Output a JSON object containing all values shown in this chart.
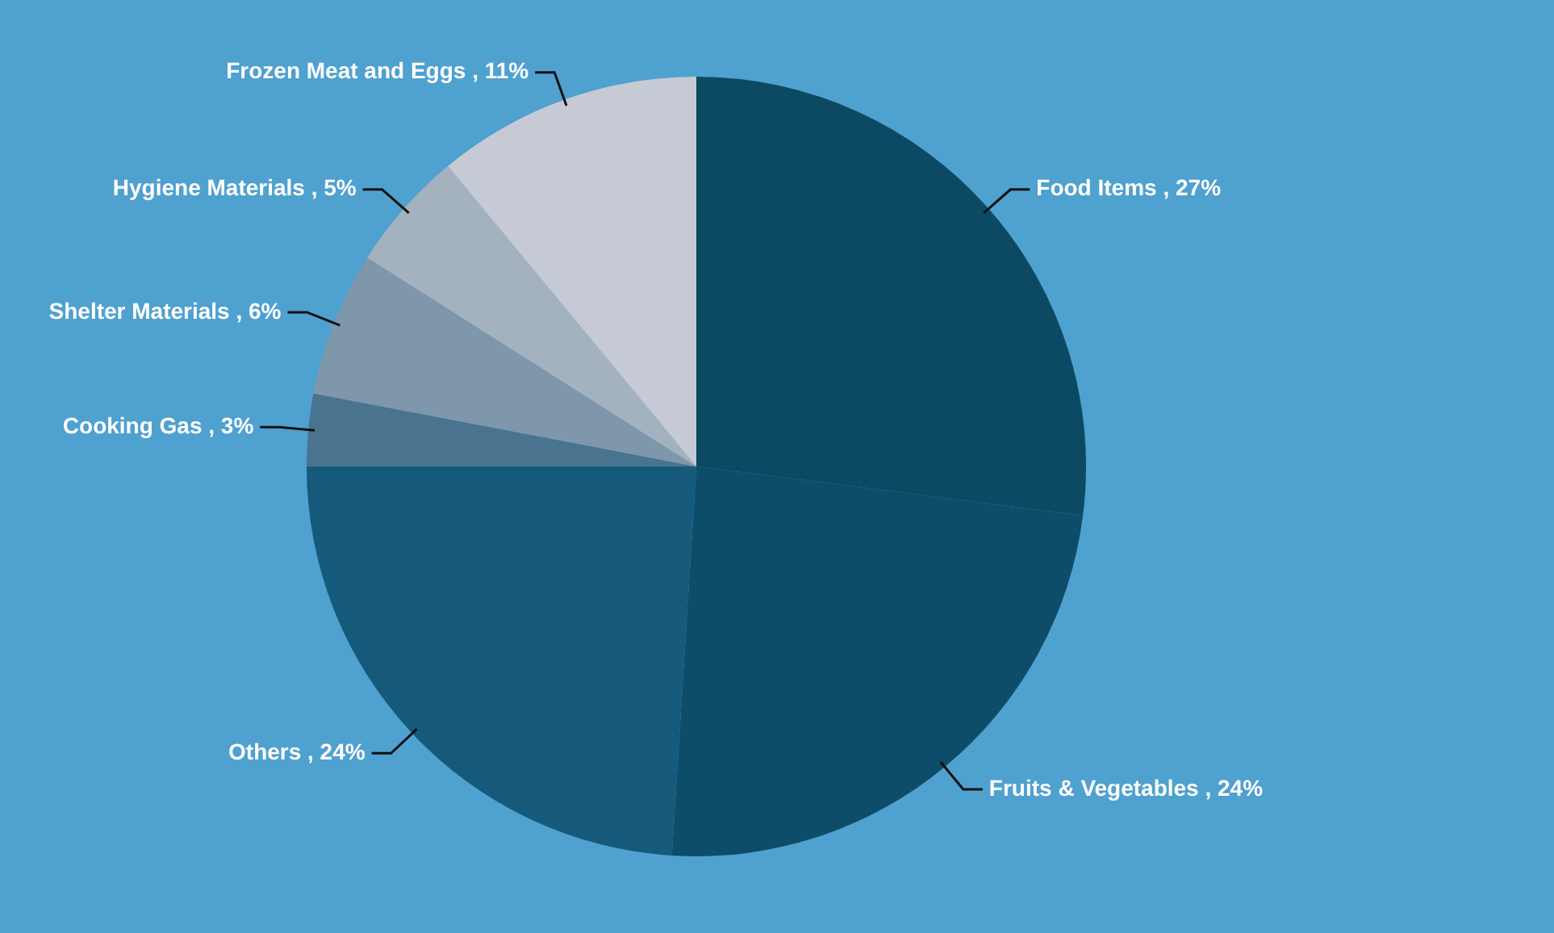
{
  "chart_data": {
    "type": "pie",
    "categories": [
      "Food Items",
      "Fruits & Vegetables",
      "Others",
      "Cooking Gas",
      "Shelter Materials",
      "Hygiene Materials",
      "Frozen Meat and Eggs"
    ],
    "values": [
      27,
      24,
      24,
      3,
      6,
      5,
      11
    ],
    "colors": [
      "#0b4a62",
      "#0e4d69",
      "#155a7b",
      "#4a7390",
      "#7f97ab",
      "#a4b2c0",
      "#c5cad5"
    ],
    "value_labels": [
      ", 27%",
      ", 24%",
      ", 24%",
      ", 3%",
      ", 6%",
      ", 5%",
      ", 11%"
    ]
  }
}
